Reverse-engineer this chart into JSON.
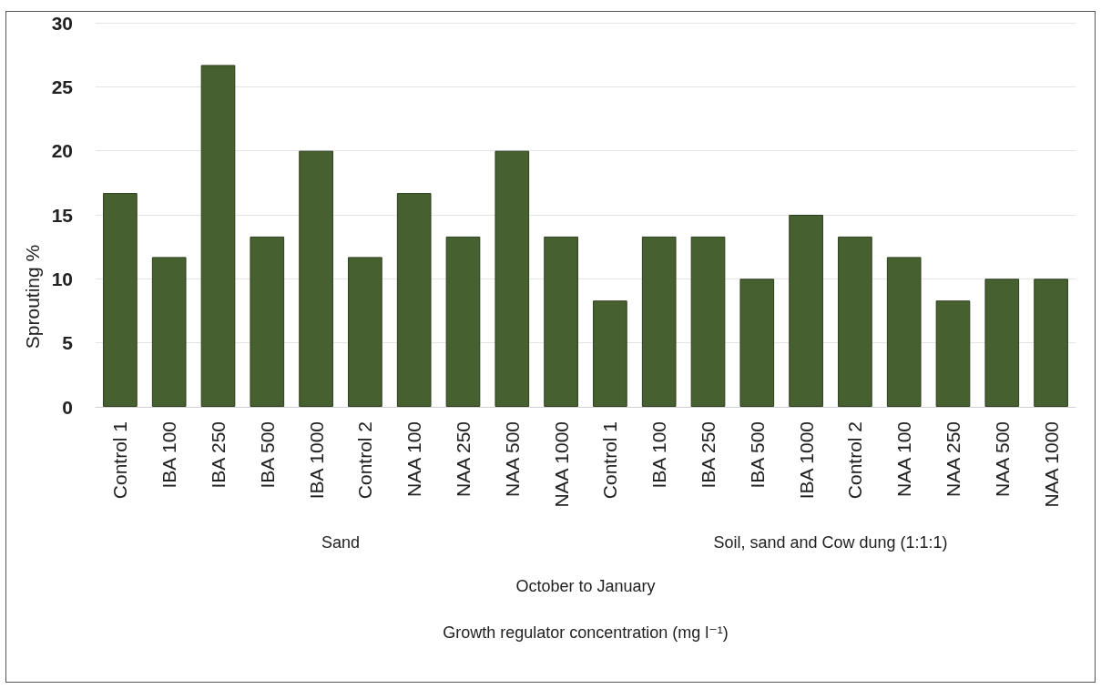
{
  "chart_data": {
    "type": "bar",
    "ylabel": "Sprouting %",
    "categories": [
      "Control 1",
      "IBA 100",
      "IBA 250",
      "IBA 500",
      "IBA 1000",
      "Control 2",
      "NAA 100",
      "NAA 250",
      "NAA 500",
      "NAA 1000",
      "Control 1",
      "IBA 100",
      "IBA 250",
      "IBA 500",
      "IBA 1000",
      "Control 2",
      "NAA 100",
      "NAA 250",
      "NAA 500",
      "NAA 1000"
    ],
    "values": [
      16.7,
      11.7,
      26.7,
      13.3,
      20,
      11.7,
      16.7,
      13.3,
      20,
      13.3,
      8.3,
      13.3,
      13.3,
      10,
      15,
      13.3,
      11.7,
      8.3,
      10,
      10
    ],
    "color": "#46602f",
    "ylim": [
      0,
      30
    ],
    "yticks": [
      0,
      5,
      10,
      15,
      20,
      25,
      30
    ],
    "grid": "y",
    "annotations": [
      "Sand",
      "Soil, sand and Cow dung (1:1:1)",
      "October to January",
      "Growth regulator concentration (mg l⁻¹)"
    ]
  }
}
